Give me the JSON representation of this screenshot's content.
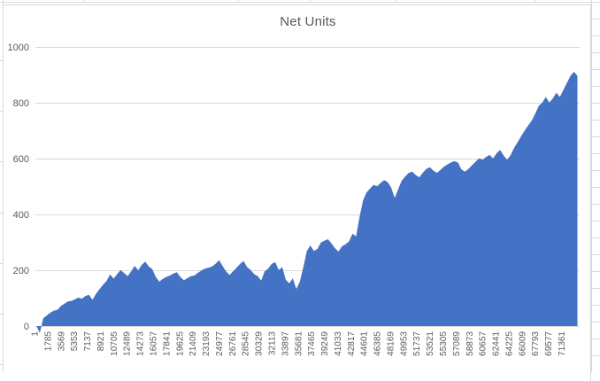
{
  "chart_data": {
    "type": "area",
    "title": "Net Units",
    "legend": "none",
    "grid": true,
    "ylim": [
      0,
      1000
    ],
    "y_ticks": [
      0,
      200,
      400,
      600,
      800,
      1000
    ],
    "x_start": 1,
    "x_step": 1784,
    "x_count": 73104,
    "x_tick_labels": [
      "1",
      "1785",
      "3569",
      "5353",
      "7137",
      "8921",
      "10705",
      "12489",
      "14273",
      "16057",
      "17841",
      "19625",
      "21409",
      "23193",
      "24977",
      "26761",
      "28545",
      "30329",
      "32113",
      "33897",
      "35681",
      "37465",
      "39249",
      "41033",
      "42817",
      "44601",
      "46385",
      "48169",
      "49953",
      "51737",
      "53521",
      "55305",
      "57089",
      "58873",
      "60657",
      "62441",
      "64225",
      "66009",
      "67793",
      "69577",
      "71361"
    ],
    "series": [
      {
        "name": "Net Units",
        "color": "#4472C4",
        "values": [
          2,
          -25,
          28,
          38,
          48,
          55,
          58,
          72,
          80,
          88,
          90,
          96,
          102,
          98,
          108,
          112,
          94,
          116,
          132,
          148,
          162,
          185,
          170,
          186,
          201,
          190,
          179,
          196,
          216,
          200,
          219,
          231,
          214,
          204,
          176,
          159,
          169,
          176,
          181,
          188,
          193,
          176,
          164,
          172,
          179,
          181,
          191,
          199,
          206,
          209,
          213,
          223,
          236,
          216,
          196,
          183,
          196,
          209,
          223,
          233,
          211,
          201,
          186,
          179,
          163,
          196,
          206,
          223,
          229,
          201,
          211,
          166,
          153,
          171,
          133,
          159,
          211,
          269,
          289,
          269,
          276,
          299,
          306,
          311,
          296,
          279,
          267,
          286,
          293,
          303,
          331,
          321,
          391,
          451,
          479,
          493,
          506,
          501,
          513,
          523,
          516,
          496,
          459,
          491,
          521,
          536,
          549,
          553,
          541,
          533,
          549,
          563,
          569,
          557,
          549,
          559,
          571,
          579,
          586,
          591,
          586,
          561,
          553,
          563,
          576,
          589,
          601,
          596,
          606,
          613,
          601,
          619,
          631,
          611,
          596,
          613,
          639,
          659,
          681,
          701,
          719,
          736,
          761,
          789,
          801,
          821,
          801,
          816,
          836,
          821,
          846,
          871,
          896,
          911,
          897
        ]
      }
    ],
    "colors": {
      "area": "#4472C4",
      "gridline": "#D9D9D9",
      "axis_text": "#595959",
      "title_text": "#595959",
      "plot_background": "#FFFFFF"
    }
  }
}
